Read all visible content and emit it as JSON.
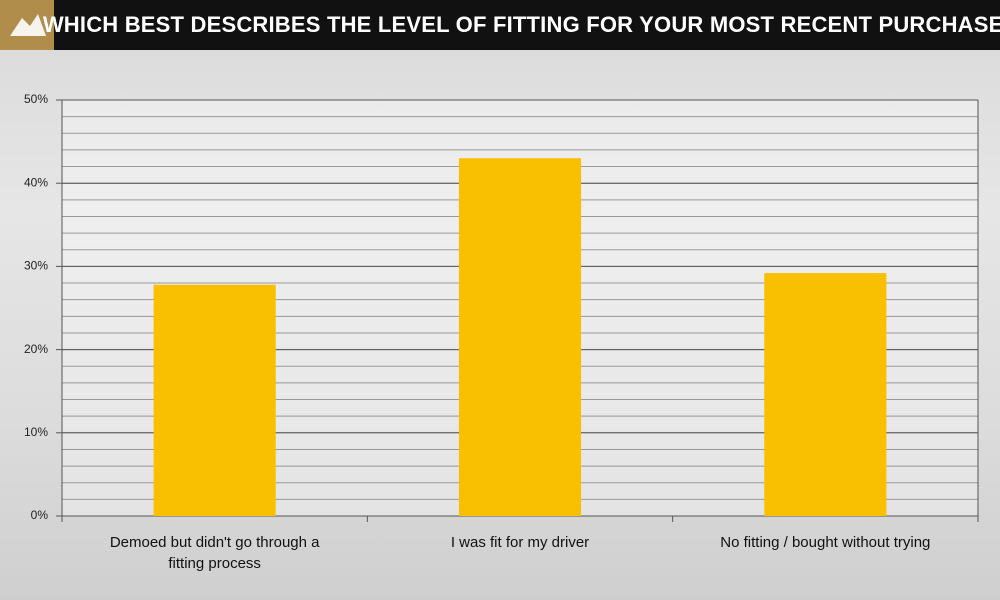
{
  "chart_data": {
    "type": "bar",
    "title": "WHICH BEST DESCRIBES THE LEVEL OF FITTING FOR YOUR MOST RECENT PURCHASE?",
    "categories": [
      "Demoed but didn't go through a fitting process",
      "I was fit for my driver",
      "No fitting / bought without trying"
    ],
    "values": [
      27.8,
      43.0,
      29.2
    ],
    "color": "#f8c000",
    "ylim": [
      0,
      50
    ],
    "yticks": [
      {
        "value": 0,
        "label": "0%"
      },
      {
        "value": 10,
        "label": "10%"
      },
      {
        "value": 20,
        "label": "20%"
      },
      {
        "value": 30,
        "label": "30%"
      },
      {
        "value": 40,
        "label": "40%"
      },
      {
        "value": 50,
        "label": "50%"
      }
    ],
    "minor_grid_step": 2,
    "grid": true
  }
}
